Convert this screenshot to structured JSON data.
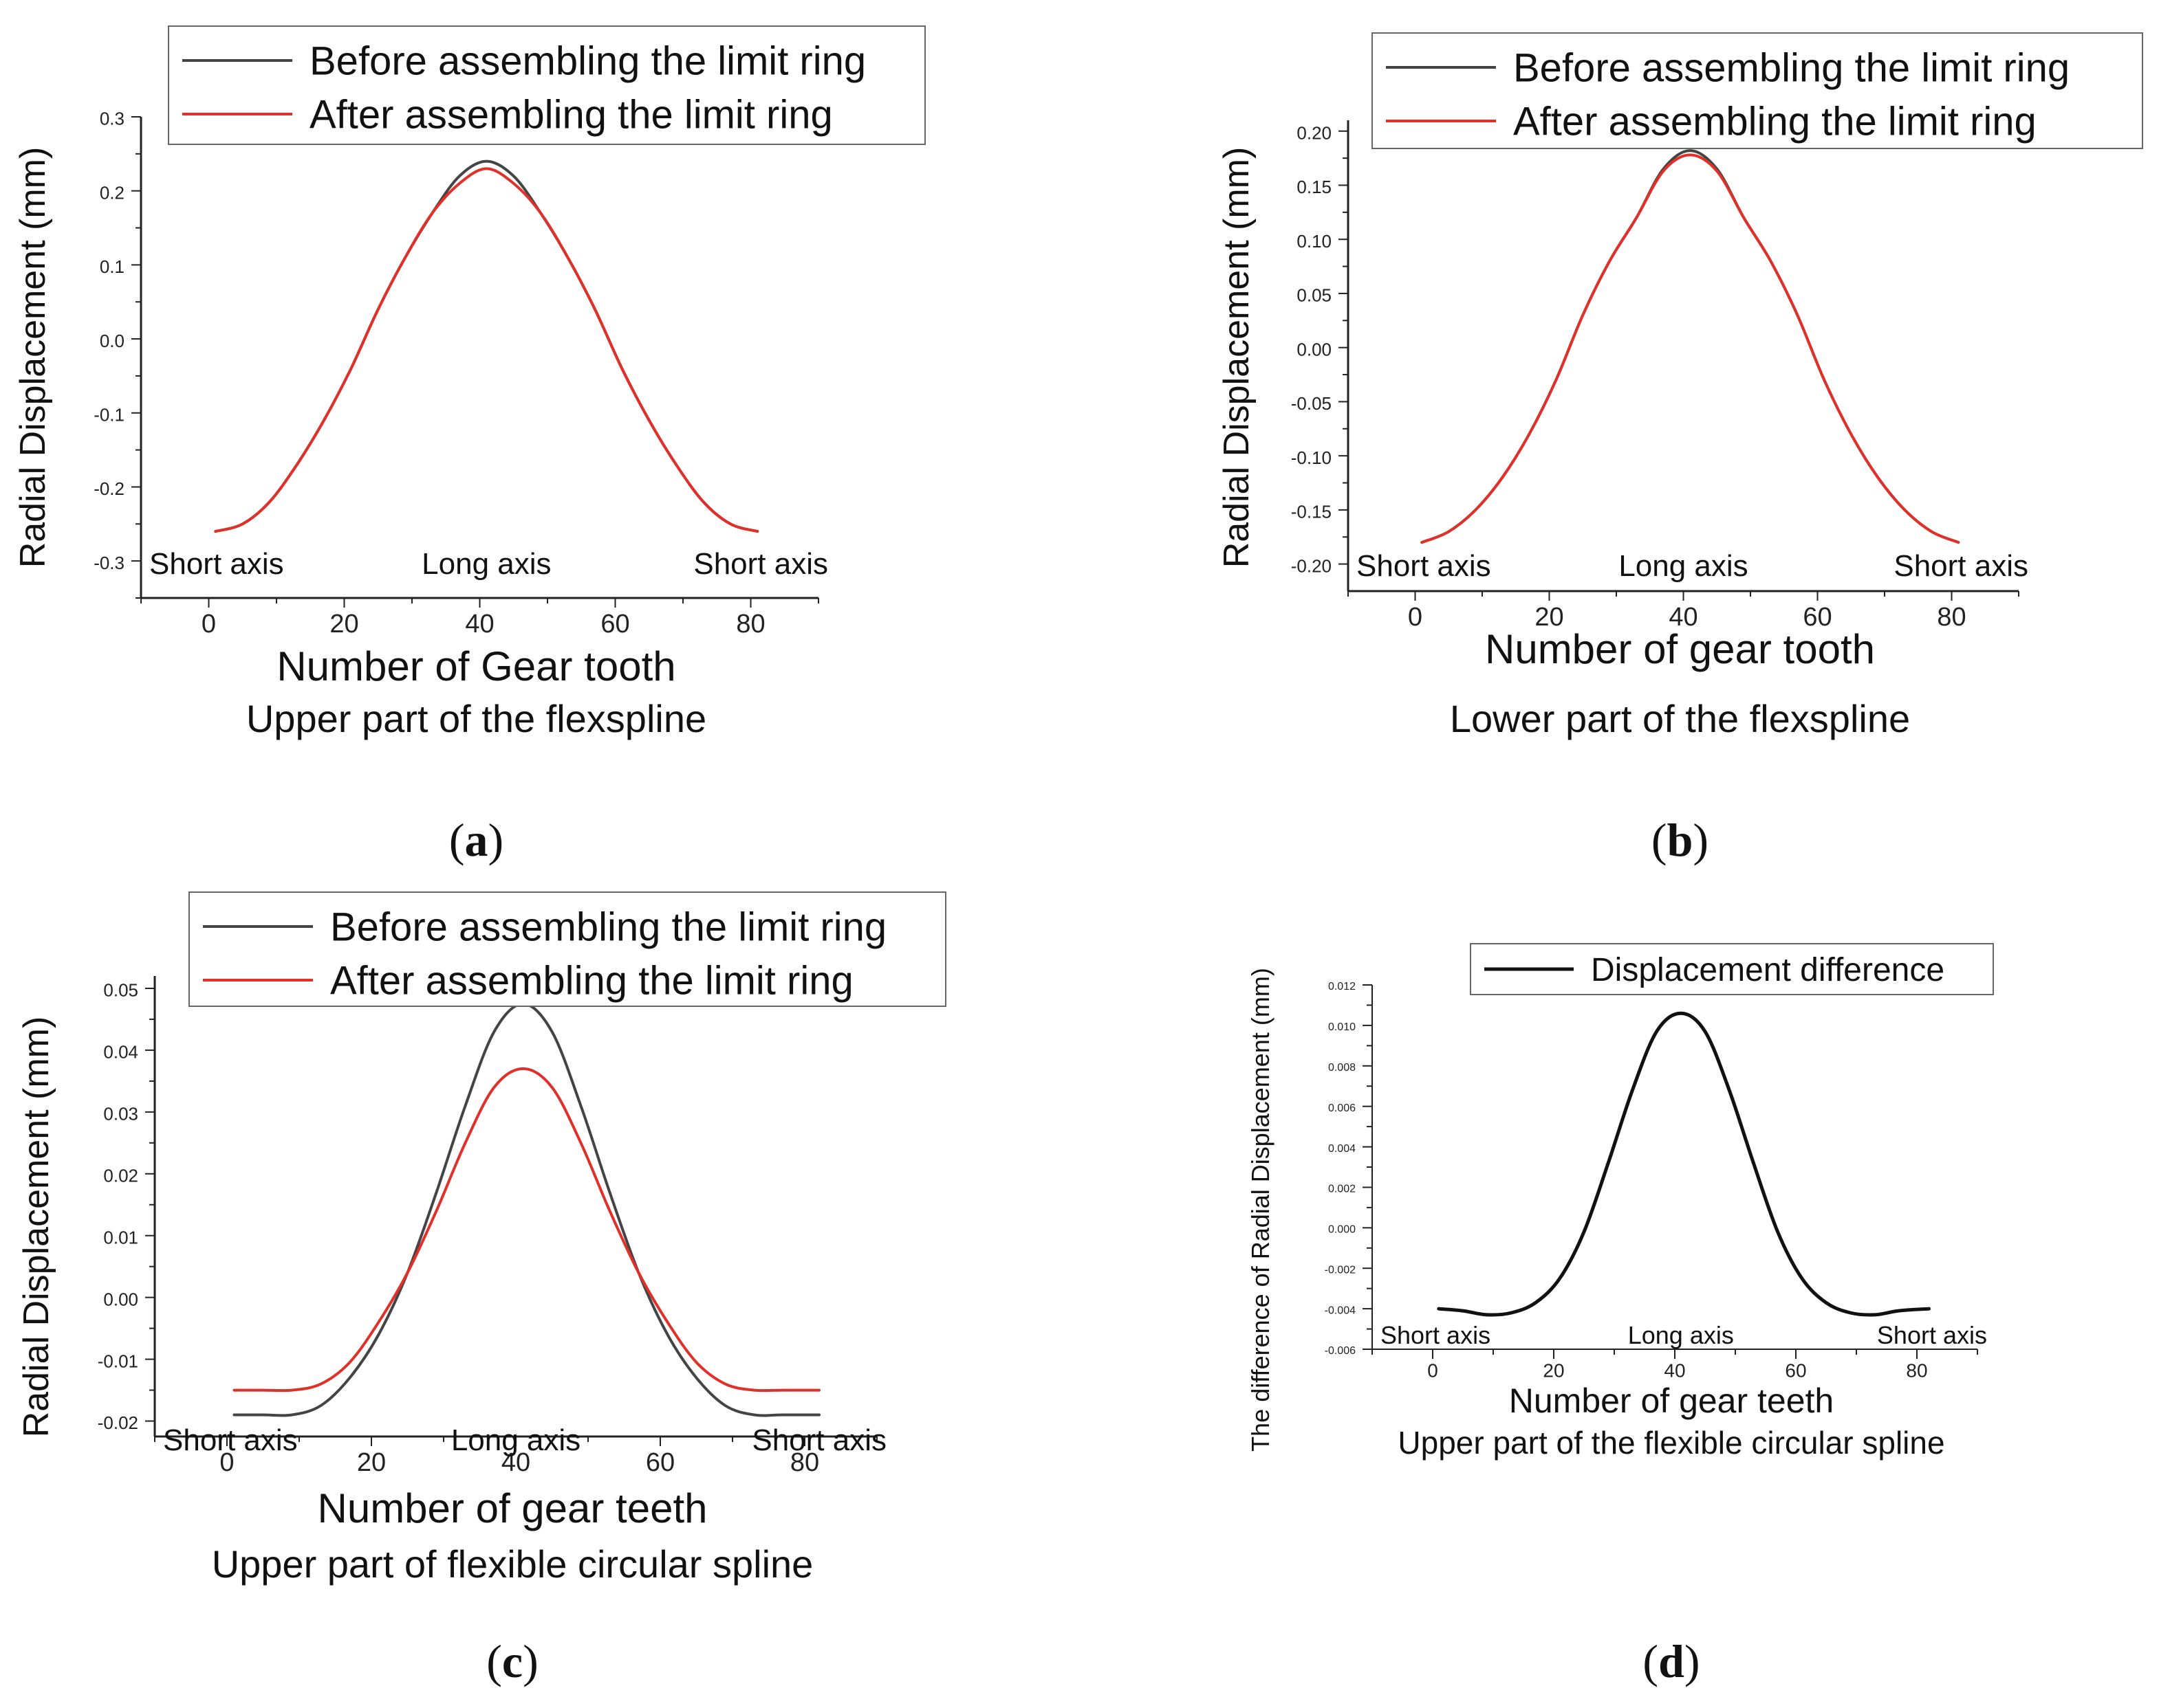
{
  "figure": {
    "panel_labels": [
      "a",
      "b",
      "c",
      "d"
    ]
  },
  "chart_data": [
    {
      "id": "a",
      "type": "line",
      "panel_label": "a",
      "title": "",
      "xlabel": "Number of Gear tooth",
      "subtitle": "Upper part of the flexspline",
      "ylabel": "Radial Displacement (mm)",
      "xlim": [
        -10,
        90
      ],
      "ylim": [
        -0.35,
        0.3
      ],
      "xticks": [
        0,
        20,
        40,
        60,
        80
      ],
      "xtick_labels": [
        "0",
        "20",
        "40",
        "60",
        "80"
      ],
      "yticks": [
        -0.3,
        -0.2,
        -0.1,
        0.0,
        0.1,
        0.2,
        0.3
      ],
      "ytick_labels": [
        "-0.3",
        "-0.2",
        "-0.1",
        "0.0",
        "0.1",
        "0.2",
        "0.3"
      ],
      "annotations": [
        {
          "text": "Short axis",
          "x": 1
        },
        {
          "text": "Long axis",
          "x": 41
        },
        {
          "text": "Short axis",
          "x": 81
        }
      ],
      "grid": false,
      "legend_position": "top",
      "x": [
        1,
        5,
        9,
        13,
        17,
        21,
        25,
        29,
        33,
        37,
        41,
        45,
        49,
        53,
        57,
        61,
        65,
        69,
        73,
        77,
        81
      ],
      "series": [
        {
          "name": "Before assembling the limit ring",
          "color": "#444444",
          "values": [
            -0.26,
            -0.25,
            -0.22,
            -0.17,
            -0.11,
            -0.04,
            0.04,
            0.11,
            0.17,
            0.22,
            0.24,
            0.22,
            0.17,
            0.11,
            0.04,
            -0.04,
            -0.11,
            -0.17,
            -0.22,
            -0.25,
            -0.26
          ]
        },
        {
          "name": "After assembling the limit ring",
          "color": "#e0302a",
          "values": [
            -0.26,
            -0.25,
            -0.22,
            -0.17,
            -0.11,
            -0.04,
            0.04,
            0.11,
            0.17,
            0.21,
            0.23,
            0.21,
            0.17,
            0.11,
            0.04,
            -0.04,
            -0.11,
            -0.17,
            -0.22,
            -0.25,
            -0.26
          ]
        }
      ]
    },
    {
      "id": "b",
      "type": "line",
      "panel_label": "b",
      "title": "",
      "xlabel": "Number of gear tooth",
      "subtitle": "Lower part of the flexspline",
      "ylabel": "Radial Displacement (mm)",
      "xlim": [
        -10,
        90
      ],
      "ylim": [
        -0.225,
        0.21
      ],
      "xticks": [
        0,
        20,
        40,
        60,
        80
      ],
      "xtick_labels": [
        "0",
        "20",
        "40",
        "60",
        "80"
      ],
      "yticks": [
        -0.2,
        -0.15,
        -0.1,
        -0.05,
        0.0,
        0.05,
        0.1,
        0.15,
        0.2
      ],
      "ytick_labels": [
        "-0.20",
        "-0.15",
        "-0.10",
        "-0.05",
        "0.00",
        "0.05",
        "0.10",
        "0.15",
        "0.20"
      ],
      "annotations": [
        {
          "text": "Short axis",
          "x": 1
        },
        {
          "text": "Long axis",
          "x": 40
        },
        {
          "text": "Short axis",
          "x": 81
        }
      ],
      "grid": false,
      "legend_position": "top",
      "x": [
        1,
        5,
        9,
        13,
        17,
        21,
        25,
        29,
        33,
        37,
        41,
        45,
        49,
        53,
        57,
        61,
        65,
        69,
        73,
        77,
        81
      ],
      "series": [
        {
          "name": "Before assembling the limit ring",
          "color": "#444444",
          "values": [
            -0.18,
            -0.17,
            -0.15,
            -0.12,
            -0.08,
            -0.03,
            0.03,
            0.08,
            0.12,
            0.165,
            0.182,
            0.165,
            0.12,
            0.08,
            0.03,
            -0.03,
            -0.08,
            -0.12,
            -0.15,
            -0.17,
            -0.18
          ]
        },
        {
          "name": "After assembling the limit ring",
          "color": "#e0302a",
          "values": [
            -0.18,
            -0.17,
            -0.15,
            -0.12,
            -0.08,
            -0.03,
            0.03,
            0.08,
            0.12,
            0.163,
            0.178,
            0.163,
            0.12,
            0.08,
            0.03,
            -0.03,
            -0.08,
            -0.12,
            -0.15,
            -0.17,
            -0.18
          ]
        }
      ]
    },
    {
      "id": "c",
      "type": "line",
      "panel_label": "c",
      "title": "",
      "xlabel": "Number of gear teeth",
      "subtitle": "Upper part of flexible circular spline",
      "ylabel": "Radial Displacement (mm)",
      "xlim": [
        -10,
        90
      ],
      "ylim": [
        -0.0225,
        0.052
      ],
      "xticks": [
        0,
        20,
        40,
        60,
        80
      ],
      "xtick_labels": [
        "0",
        "20",
        "40",
        "60",
        "80"
      ],
      "yticks": [
        -0.02,
        -0.01,
        0.0,
        0.01,
        0.02,
        0.03,
        0.04,
        0.05
      ],
      "ytick_labels": [
        "-0.02",
        "-0.01",
        "0.00",
        "0.01",
        "0.02",
        "0.03",
        "0.04",
        "0.05"
      ],
      "annotations": [
        {
          "text": "Short axis",
          "x": 1
        },
        {
          "text": "Long axis",
          "x": 40
        },
        {
          "text": "Short axis",
          "x": 82
        }
      ],
      "grid": false,
      "legend_position": "top",
      "x": [
        1,
        5,
        9,
        13,
        17,
        21,
        25,
        29,
        33,
        37,
        41,
        45,
        49,
        53,
        57,
        61,
        65,
        69,
        73,
        77,
        82
      ],
      "series": [
        {
          "name": "Before assembling the limit ring",
          "color": "#444444",
          "values": [
            -0.019,
            -0.019,
            -0.019,
            -0.0175,
            -0.013,
            -0.006,
            0.004,
            0.017,
            0.031,
            0.043,
            0.0475,
            0.043,
            0.031,
            0.017,
            0.004,
            -0.006,
            -0.013,
            -0.0175,
            -0.019,
            -0.019,
            -0.019
          ]
        },
        {
          "name": "After assembling the limit ring",
          "color": "#e0302a",
          "values": [
            -0.015,
            -0.015,
            -0.015,
            -0.014,
            -0.0105,
            -0.004,
            0.004,
            0.014,
            0.025,
            0.034,
            0.037,
            0.034,
            0.025,
            0.014,
            0.004,
            -0.004,
            -0.0105,
            -0.014,
            -0.015,
            -0.015,
            -0.015
          ]
        }
      ]
    },
    {
      "id": "d",
      "type": "line",
      "panel_label": "d",
      "title": "",
      "xlabel": "Number of gear teeth",
      "subtitle": "Upper part of the flexible circular spline",
      "ylabel": "The difference of Radial Displacement (mm)",
      "xlim": [
        -10,
        90
      ],
      "ylim": [
        -0.006,
        0.012
      ],
      "xticks": [
        0,
        20,
        40,
        60,
        80
      ],
      "xtick_labels": [
        "0",
        "20",
        "40",
        "60",
        "80"
      ],
      "yticks": [
        -0.006,
        -0.004,
        -0.002,
        0.0,
        0.002,
        0.004,
        0.006,
        0.008,
        0.01,
        0.012
      ],
      "ytick_labels": [
        "-0.006",
        "-0.004",
        "-0.002",
        "0.000",
        "0.002",
        "0.004",
        "0.006",
        "0.008",
        "0.010",
        "0.012"
      ],
      "annotations": [
        {
          "text": "Short axis",
          "x": 1
        },
        {
          "text": "Long axis",
          "x": 41
        },
        {
          "text": "Short axis",
          "x": 81
        }
      ],
      "grid": false,
      "legend_position": "top",
      "x": [
        1,
        5,
        9,
        13,
        17,
        21,
        25,
        29,
        33,
        37,
        41,
        45,
        49,
        53,
        57,
        61,
        65,
        69,
        73,
        77,
        82
      ],
      "series": [
        {
          "name": "Displacement difference",
          "color": "#111111",
          "values": [
            -0.004,
            -0.0041,
            -0.0043,
            -0.0042,
            -0.0037,
            -0.0025,
            -0.0002,
            0.0032,
            0.0068,
            0.0097,
            0.0106,
            0.0097,
            0.0068,
            0.0032,
            -0.0002,
            -0.0025,
            -0.0037,
            -0.0042,
            -0.0043,
            -0.0041,
            -0.004
          ]
        }
      ]
    }
  ]
}
